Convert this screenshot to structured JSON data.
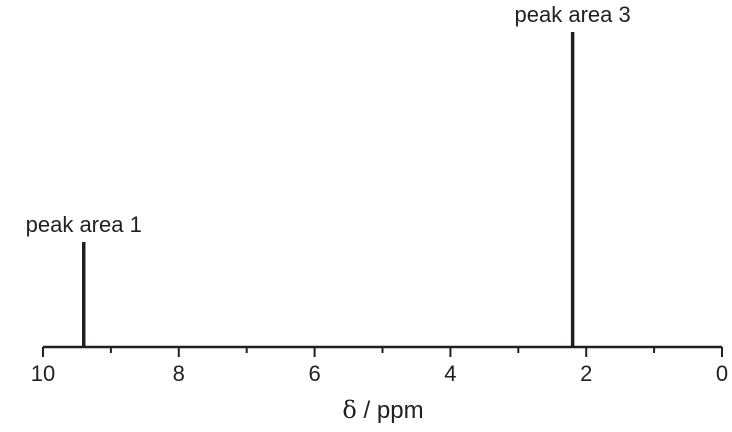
{
  "chart_data": {
    "type": "bar",
    "title": "",
    "xlabel": "δ / ppm",
    "xlabel_symbol": "δ",
    "xlabel_unit": "ppm",
    "ylabel": "",
    "xlim": [
      10,
      0
    ],
    "x_reversed": true,
    "grid": false,
    "legend": "none",
    "x_major_ticks": [
      10,
      8,
      6,
      4,
      2,
      0
    ],
    "x_minor_ticks": [
      9,
      7,
      5,
      3,
      1
    ],
    "x_tick_labels": [
      "10",
      "8",
      "6",
      "4",
      "2",
      "0"
    ],
    "peaks": [
      {
        "shift_ppm": 9.4,
        "relative_area": 1,
        "label": "peak area 1"
      },
      {
        "shift_ppm": 2.2,
        "relative_area": 3,
        "label": "peak area 3"
      }
    ],
    "colors": {
      "ink": "#231f20"
    }
  }
}
